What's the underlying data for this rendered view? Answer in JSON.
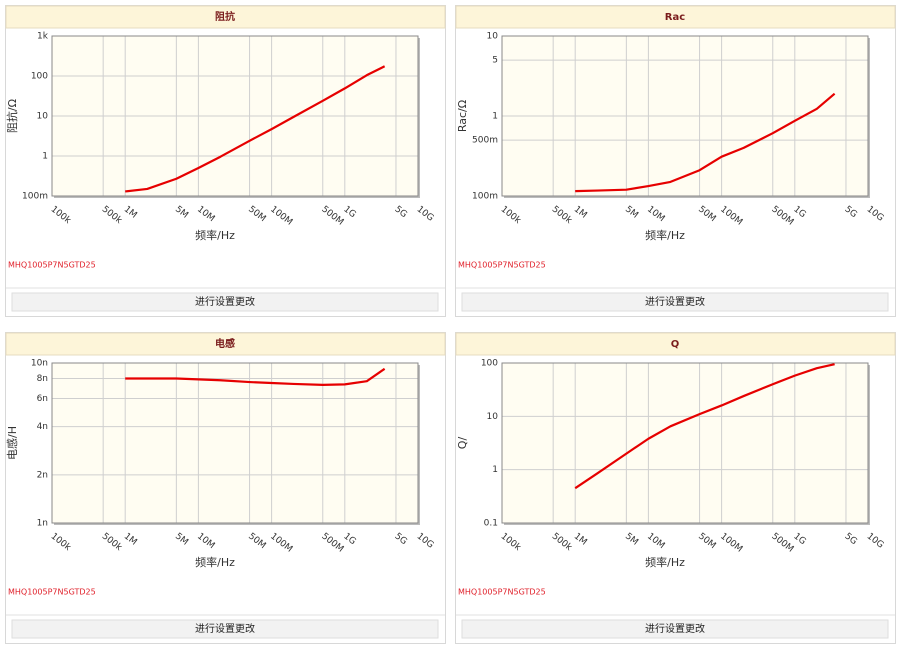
{
  "chart_data": [
    {
      "type": "line",
      "title": "阻抗",
      "x_label": "频率/Hz",
      "y_label": "阻抗/Ω",
      "caption": "MHQ1005P7N5GTD25",
      "button": "进行设置更改",
      "log_x": true,
      "log_y": true,
      "grid": true,
      "color": "#e60000",
      "x": [
        1000000,
        2000000,
        5000000,
        10000000,
        20000000,
        50000000,
        100000000,
        200000000,
        500000000,
        1000000000,
        2000000000,
        3500000000
      ],
      "values": [
        0.13,
        0.15,
        0.27,
        0.5,
        0.96,
        2.4,
        4.7,
        9.5,
        24,
        49,
        105,
        175
      ],
      "xlim": [
        100000,
        10000000000
      ],
      "xticks": [
        {
          "value": 100000,
          "label": "100k"
        },
        {
          "value": 500000,
          "label": "500k"
        },
        {
          "value": 1000000,
          "label": "1M"
        },
        {
          "value": 5000000,
          "label": "5M"
        },
        {
          "value": 10000000,
          "label": "10M"
        },
        {
          "value": 50000000,
          "label": "50M"
        },
        {
          "value": 100000000,
          "label": "100M"
        },
        {
          "value": 500000000,
          "label": "500M"
        },
        {
          "value": 1000000000,
          "label": "1G"
        },
        {
          "value": 5000000000,
          "label": "5G"
        },
        {
          "value": 10000000000,
          "label": "10G"
        }
      ],
      "ylim": [
        0.1,
        1000
      ],
      "yticks": [
        {
          "value": 0.1,
          "label": "100m"
        },
        1,
        10,
        100,
        {
          "value": 1000,
          "label": "1k"
        }
      ]
    },
    {
      "type": "line",
      "title": "Rac",
      "x_label": "频率/Hz",
      "y_label": "Rac/Ω",
      "caption": "MHQ1005P7N5GTD25",
      "button": "进行设置更改",
      "log_x": true,
      "log_y": true,
      "grid": true,
      "color": "#e60000",
      "x": [
        1000000,
        2000000,
        5000000,
        10000000,
        20000000,
        50000000,
        100000000,
        200000000,
        500000000,
        1000000000,
        2000000000,
        3500000000
      ],
      "values": [
        0.115,
        0.117,
        0.12,
        0.133,
        0.15,
        0.21,
        0.31,
        0.4,
        0.61,
        0.87,
        1.23,
        1.9
      ],
      "xlim": [
        100000,
        10000000000
      ],
      "xticks": [
        {
          "value": 100000,
          "label": "100k"
        },
        {
          "value": 500000,
          "label": "500k"
        },
        {
          "value": 1000000,
          "label": "1M"
        },
        {
          "value": 5000000,
          "label": "5M"
        },
        {
          "value": 10000000,
          "label": "10M"
        },
        {
          "value": 50000000,
          "label": "50M"
        },
        {
          "value": 100000000,
          "label": "100M"
        },
        {
          "value": 500000000,
          "label": "500M"
        },
        {
          "value": 1000000000,
          "label": "1G"
        },
        {
          "value": 5000000000,
          "label": "5G"
        },
        {
          "value": 10000000000,
          "label": "10G"
        }
      ],
      "ylim": [
        0.1,
        10
      ],
      "yticks": [
        {
          "value": 0.1,
          "label": "100m"
        },
        {
          "value": 0.5,
          "label": "500m"
        },
        1,
        5,
        10
      ]
    },
    {
      "type": "line",
      "title": "电感",
      "x_label": "频率/Hz",
      "y_label": "电感/H",
      "caption": "MHQ1005P7N5GTD25",
      "button": "进行设置更改",
      "log_x": true,
      "log_y": true,
      "grid": true,
      "color": "#e60000",
      "x": [
        1000000,
        2000000,
        5000000,
        10000000,
        20000000,
        50000000,
        100000000,
        200000000,
        500000000,
        1000000000,
        2000000000,
        3500000000
      ],
      "values": [
        8e-09,
        8e-09,
        8e-09,
        7.9e-09,
        7.8e-09,
        7.6e-09,
        7.5e-09,
        7.4e-09,
        7.3e-09,
        7.35e-09,
        7.7e-09,
        9.2e-09
      ],
      "xlim": [
        100000,
        10000000000
      ],
      "xticks": [
        {
          "value": 100000,
          "label": "100k"
        },
        {
          "value": 500000,
          "label": "500k"
        },
        {
          "value": 1000000,
          "label": "1M"
        },
        {
          "value": 5000000,
          "label": "5M"
        },
        {
          "value": 10000000,
          "label": "10M"
        },
        {
          "value": 50000000,
          "label": "50M"
        },
        {
          "value": 100000000,
          "label": "100M"
        },
        {
          "value": 500000000,
          "label": "500M"
        },
        {
          "value": 1000000000,
          "label": "1G"
        },
        {
          "value": 5000000000,
          "label": "5G"
        },
        {
          "value": 10000000000,
          "label": "10G"
        }
      ],
      "ylim": [
        1e-09,
        1e-08
      ],
      "yticks": [
        {
          "value": 1e-09,
          "label": "1n"
        },
        {
          "value": 2e-09,
          "label": "2n"
        },
        {
          "value": 4e-09,
          "label": "4n"
        },
        {
          "value": 6e-09,
          "label": "6n"
        },
        {
          "value": 8e-09,
          "label": "8n"
        },
        {
          "value": 1e-08,
          "label": "10n"
        }
      ]
    },
    {
      "type": "line",
      "title": "Q",
      "x_label": "频率/Hz",
      "y_label": "Q/",
      "caption": "MHQ1005P7N5GTD25",
      "button": "进行设置更改",
      "log_x": true,
      "log_y": true,
      "grid": true,
      "color": "#e60000",
      "x": [
        1000000,
        2000000,
        5000000,
        10000000,
        20000000,
        50000000,
        100000000,
        200000000,
        500000000,
        1000000000,
        2000000000,
        3500000000
      ],
      "values": [
        0.45,
        0.85,
        2.0,
        3.8,
        6.5,
        11,
        16,
        24,
        40,
        58,
        80,
        95
      ],
      "xlim": [
        100000,
        10000000000
      ],
      "xticks": [
        {
          "value": 100000,
          "label": "100k"
        },
        {
          "value": 500000,
          "label": "500k"
        },
        {
          "value": 1000000,
          "label": "1M"
        },
        {
          "value": 5000000,
          "label": "5M"
        },
        {
          "value": 10000000,
          "label": "10M"
        },
        {
          "value": 50000000,
          "label": "50M"
        },
        {
          "value": 100000000,
          "label": "100M"
        },
        {
          "value": 500000000,
          "label": "500M"
        },
        {
          "value": 1000000000,
          "label": "1G"
        },
        {
          "value": 5000000000,
          "label": "5G"
        },
        {
          "value": 10000000000,
          "label": "10G"
        }
      ],
      "ylim": [
        0.1,
        100
      ],
      "yticks": [
        0.1,
        1,
        10,
        100
      ]
    }
  ]
}
